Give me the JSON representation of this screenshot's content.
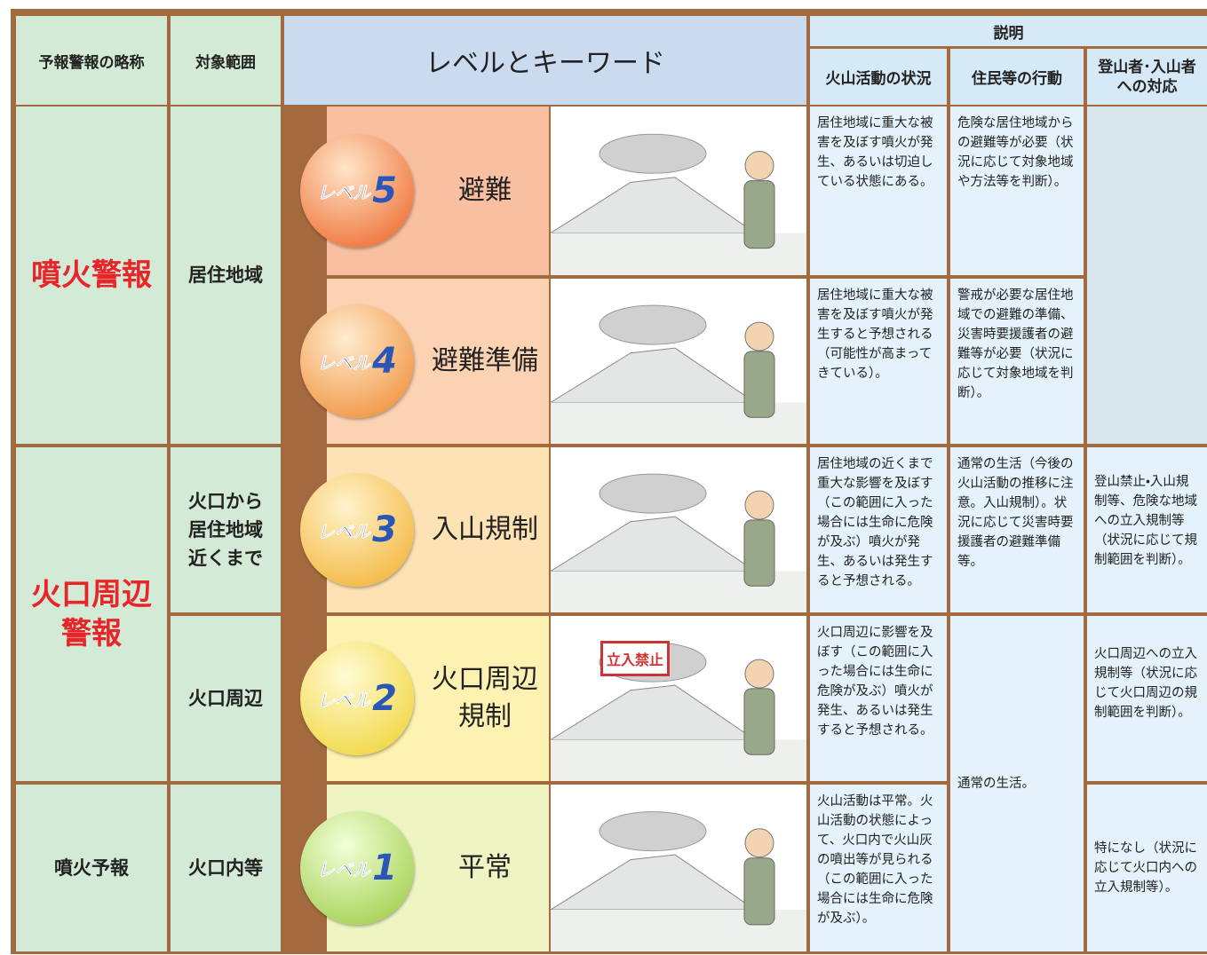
{
  "header": {
    "abbreviation": "予報警報の略称",
    "target": "対象範囲",
    "level_keyword": "レベルとキーワード",
    "explanation": "説明",
    "volcano_status": "火山活動の状況",
    "resident_action": "住民等の行動",
    "climber_response": "登山者･入山者への対応"
  },
  "warnings": [
    "噴火警報",
    "火口周辺警報",
    "噴火予報"
  ],
  "targets": [
    "居住地域",
    "火口から居住地域近くまで",
    "火口周辺",
    "火口内等"
  ],
  "levels": [
    {
      "badge": "レベル",
      "number": "5",
      "keyword": "避難",
      "status": "居住地域に重大な被害を及ぼす噴火が発生、あるいは切迫している状態にある。"
    },
    {
      "badge": "レベル",
      "number": "4",
      "keyword": "避難準備",
      "status": "居住地域に重大な被害を及ぼす噴火が発生すると予想される（可能性が高まってきている）。"
    },
    {
      "badge": "レベル",
      "number": "3",
      "keyword": "入山規制",
      "status": "居住地域の近くまで重大な影響を及ぼす（この範囲に入った場合には生命に危険が及ぶ）噴火が発生、あるいは発生すると予想される。"
    },
    {
      "badge": "レベル",
      "number": "2",
      "keyword": "火口周辺規制",
      "status": "火口周辺に影響を及ぼす（この範囲に入った場合には生命に危険が及ぶ）噴火が発生、あるいは発生すると予想される。"
    },
    {
      "badge": "レベル",
      "number": "1",
      "keyword": "平常",
      "status": "火山活動は平常。火山活動の状態によって、火口内で火山灰の噴出等が見られる（この範囲に入った場合には生命に危険が及ぶ）。"
    }
  ],
  "resident_actions": [
    "危険な居住地域からの避難等が必要（状況に応じて対象地域や方法等を判断）。",
    "警戒が必要な居住地域での避難の準備、災害時要援護者の避難等が必要（状況に応じて対象地域を判断）。",
    "通常の生活（今後の火山活動の推移に注意。入山規制）。状況に応じて災害時要援護者の避難準備等。",
    "通常の生活。"
  ],
  "climber_responses": [
    "登山禁止・入山規制等、危険な地域への立入規制等（状況に応じて規制範囲を判断）。",
    "火口周辺への立入規制等（状況に応じて火口周辺の規制範囲を判断）。",
    "特になし（状況に応じて火口内への立入規制等）。"
  ],
  "sign": "立入禁止"
}
